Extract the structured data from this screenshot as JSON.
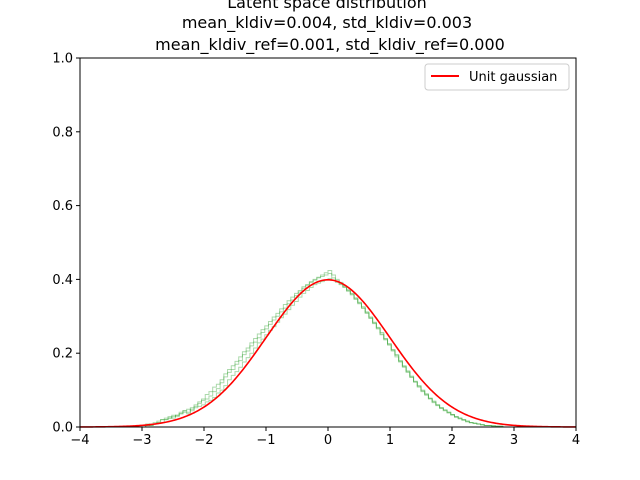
{
  "chart_data": {
    "type": "line",
    "title_lines": [
      "Latent space distribution",
      "mean_kldiv=0.004, std_kldiv=0.003",
      "mean_kldiv_ref=0.001, std_kldiv_ref=0.000"
    ],
    "xlabel": "",
    "ylabel": "",
    "xlim": [
      -4,
      4
    ],
    "ylim": [
      0,
      1.0
    ],
    "x_ticks": [
      -4,
      -3,
      -2,
      -1,
      0,
      1,
      2,
      3,
      4
    ],
    "x_tick_labels": [
      "−4",
      "−3",
      "−2",
      "−1",
      "0",
      "1",
      "2",
      "3",
      "4"
    ],
    "y_ticks": [
      0.0,
      0.2,
      0.4,
      0.6,
      0.8,
      1.0
    ],
    "y_tick_labels": [
      "0.0",
      "0.2",
      "0.4",
      "0.6",
      "0.8",
      "1.0"
    ],
    "grid": false,
    "legend_position": "upper right",
    "series": [
      {
        "name": "Unit gaussian",
        "kind": "line",
        "color": "#ff0000",
        "function": "standard normal pdf",
        "x_range": [
          -4,
          4
        ]
      },
      {
        "kind": "step_histograms",
        "color": "#2ca02c",
        "opacity": 0.4,
        "bin_edges_range": [
          -3.0,
          3.0
        ],
        "bin_count": 100,
        "histograms": [
          [
            0.0,
            0.008,
            0.004,
            0.012,
            0.016,
            0.02,
            0.024,
            0.028,
            0.024,
            0.032,
            0.036,
            0.04,
            0.036,
            0.048,
            0.052,
            0.056,
            0.06,
            0.068,
            0.072,
            0.08,
            0.092,
            0.1,
            0.112,
            0.128,
            0.14,
            0.15,
            0.162,
            0.176,
            0.188,
            0.2,
            0.214,
            0.228,
            0.238,
            0.25,
            0.262,
            0.272,
            0.284,
            0.296,
            0.306,
            0.318,
            0.33,
            0.34,
            0.352,
            0.362,
            0.37,
            0.378,
            0.386,
            0.39,
            0.394,
            0.398,
            0.402,
            0.398,
            0.392,
            0.386,
            0.378,
            0.368,
            0.358,
            0.346,
            0.334,
            0.322,
            0.308,
            0.294,
            0.28,
            0.266,
            0.25,
            0.236,
            0.222,
            0.206,
            0.19,
            0.176,
            0.162,
            0.148,
            0.134,
            0.122,
            0.108,
            0.096,
            0.086,
            0.076,
            0.066,
            0.058,
            0.05,
            0.044,
            0.038,
            0.032,
            0.026,
            0.022,
            0.018,
            0.014,
            0.012,
            0.01,
            0.008,
            0.006,
            0.004,
            0.004,
            0.002,
            0.002,
            0.002,
            0.0,
            0.0,
            0.0
          ],
          [
            0.004,
            0.004,
            0.008,
            0.008,
            0.012,
            0.02,
            0.02,
            0.024,
            0.032,
            0.028,
            0.04,
            0.044,
            0.048,
            0.044,
            0.056,
            0.064,
            0.072,
            0.076,
            0.084,
            0.096,
            0.104,
            0.12,
            0.136,
            0.148,
            0.156,
            0.17,
            0.18,
            0.196,
            0.206,
            0.22,
            0.23,
            0.242,
            0.256,
            0.266,
            0.278,
            0.29,
            0.3,
            0.312,
            0.322,
            0.334,
            0.344,
            0.356,
            0.366,
            0.376,
            0.384,
            0.392,
            0.4,
            0.406,
            0.412,
            0.418,
            0.424,
            0.412,
            0.4,
            0.392,
            0.382,
            0.372,
            0.362,
            0.35,
            0.338,
            0.326,
            0.312,
            0.298,
            0.284,
            0.27,
            0.256,
            0.24,
            0.226,
            0.21,
            0.196,
            0.18,
            0.166,
            0.152,
            0.138,
            0.124,
            0.112,
            0.1,
            0.09,
            0.078,
            0.07,
            0.06,
            0.052,
            0.046,
            0.04,
            0.034,
            0.028,
            0.024,
            0.02,
            0.016,
            0.012,
            0.01,
            0.008,
            0.006,
            0.004,
            0.004,
            0.004,
            0.002,
            0.002,
            0.0,
            0.0,
            0.0
          ],
          [
            0.0,
            0.004,
            0.004,
            0.008,
            0.012,
            0.012,
            0.02,
            0.024,
            0.028,
            0.032,
            0.036,
            0.044,
            0.04,
            0.052,
            0.06,
            0.068,
            0.076,
            0.088,
            0.096,
            0.108,
            0.116,
            0.128,
            0.144,
            0.156,
            0.166,
            0.178,
            0.19,
            0.204,
            0.214,
            0.228,
            0.24,
            0.252,
            0.264,
            0.274,
            0.286,
            0.298,
            0.308,
            0.32,
            0.332,
            0.342,
            0.352,
            0.362,
            0.37,
            0.38,
            0.386,
            0.394,
            0.398,
            0.404,
            0.408,
            0.412,
            0.416,
            0.404,
            0.396,
            0.388,
            0.38,
            0.37,
            0.36,
            0.348,
            0.336,
            0.322,
            0.31,
            0.296,
            0.282,
            0.268,
            0.252,
            0.238,
            0.224,
            0.208,
            0.194,
            0.178,
            0.164,
            0.15,
            0.136,
            0.122,
            0.11,
            0.098,
            0.088,
            0.078,
            0.068,
            0.06,
            0.052,
            0.046,
            0.04,
            0.034,
            0.028,
            0.024,
            0.02,
            0.016,
            0.012,
            0.01,
            0.008,
            0.006,
            0.004,
            0.004,
            0.002,
            0.002,
            0.002,
            0.0,
            0.0,
            0.0
          ]
        ]
      }
    ]
  }
}
